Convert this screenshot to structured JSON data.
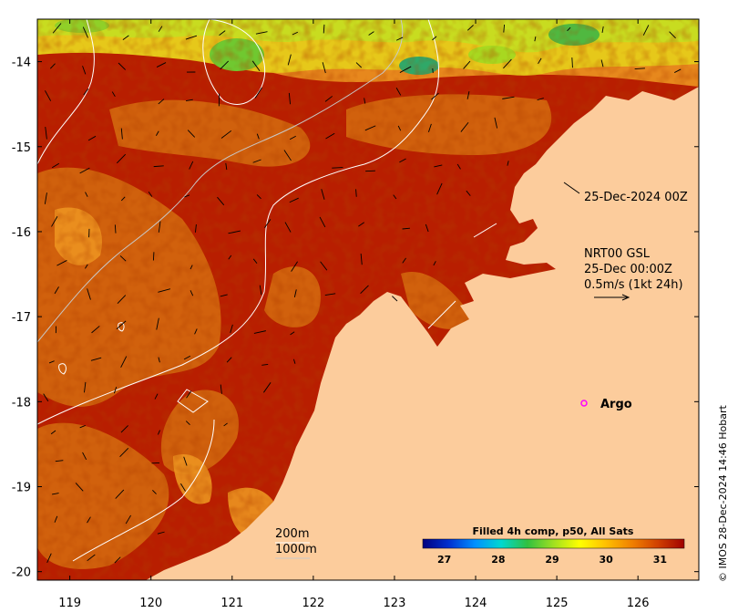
{
  "map": {
    "x_ticks": [
      "119",
      "120",
      "121",
      "122",
      "123",
      "124",
      "125",
      "126"
    ],
    "y_ticks": [
      "-14",
      "-15",
      "-16",
      "-17",
      "-18",
      "-19",
      "-20"
    ],
    "x_range": [
      118.6,
      126.75
    ],
    "y_range": [
      -20.1,
      -13.5
    ]
  },
  "annotations": {
    "coast_time": "25-Dec-2024 00Z",
    "currents_line1": "NRT00 GSL",
    "currents_line2": "25-Dec 00:00Z",
    "currents_line3": "0.5m/s (1kt 24h)",
    "argo_label": "Argo",
    "contour_200": "200m",
    "contour_1000": "1000m"
  },
  "colorbar": {
    "title": "Filled 4h comp, p50, All Sats",
    "ticks": [
      "27",
      "28",
      "29",
      "30",
      "31"
    ],
    "colors": [
      "#00007f",
      "#0030d0",
      "#0090ff",
      "#00d8d0",
      "#30c040",
      "#a0e020",
      "#ffff00",
      "#ffc000",
      "#f08000",
      "#d04000",
      "#a00000"
    ]
  },
  "credit": "© IMOS 28-Dec-2024 14:46 Hobart",
  "colors": {
    "land": "#fccc9c",
    "sst_hot": "#b01a00",
    "sst_warm": "#d46a10",
    "sst_mild": "#f0a020",
    "sst_cool": "#d8e020",
    "argo": "#ff00ff"
  }
}
